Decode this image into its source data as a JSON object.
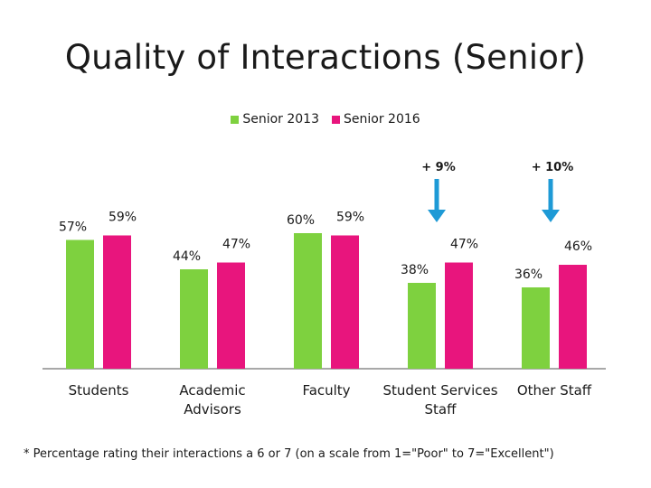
{
  "title": "Quality of Interactions (Senior)",
  "legend": [
    {
      "label": "Senior 2013",
      "color": "#7ED13F"
    },
    {
      "label": "Senior 2016",
      "color": "#E8157D"
    }
  ],
  "chart_data": {
    "type": "bar",
    "categories": [
      [
        "Students"
      ],
      [
        "Academic",
        "Advisors"
      ],
      [
        "Faculty"
      ],
      [
        "Student Services",
        "Staff"
      ],
      [
        "Other Staff"
      ]
    ],
    "series": [
      {
        "name": "Senior 2013",
        "values": [
          57,
          44,
          60,
          38,
          36
        ],
        "labels": [
          "57%",
          "44%",
          "60%",
          "38%",
          "36%"
        ],
        "color": "#7ED13F"
      },
      {
        "name": "Senior 2016",
        "values": [
          59,
          47,
          59,
          47,
          46
        ],
        "labels": [
          "59%",
          "47%",
          "59%",
          "47%",
          "46%"
        ],
        "color": "#E8157D"
      }
    ],
    "annotations": [
      {
        "category_index": 3,
        "text": "+ 9%"
      },
      {
        "category_index": 4,
        "text": "+ 10%"
      }
    ],
    "arrow_color": "#1E9AD6",
    "ylim": [
      0,
      65
    ],
    "xlabel": "",
    "ylabel": ""
  },
  "footnote": "* Percentage rating their interactions a 6 or 7 (on a scale from 1=\"Poor\" to 7=\"Excellent\")"
}
